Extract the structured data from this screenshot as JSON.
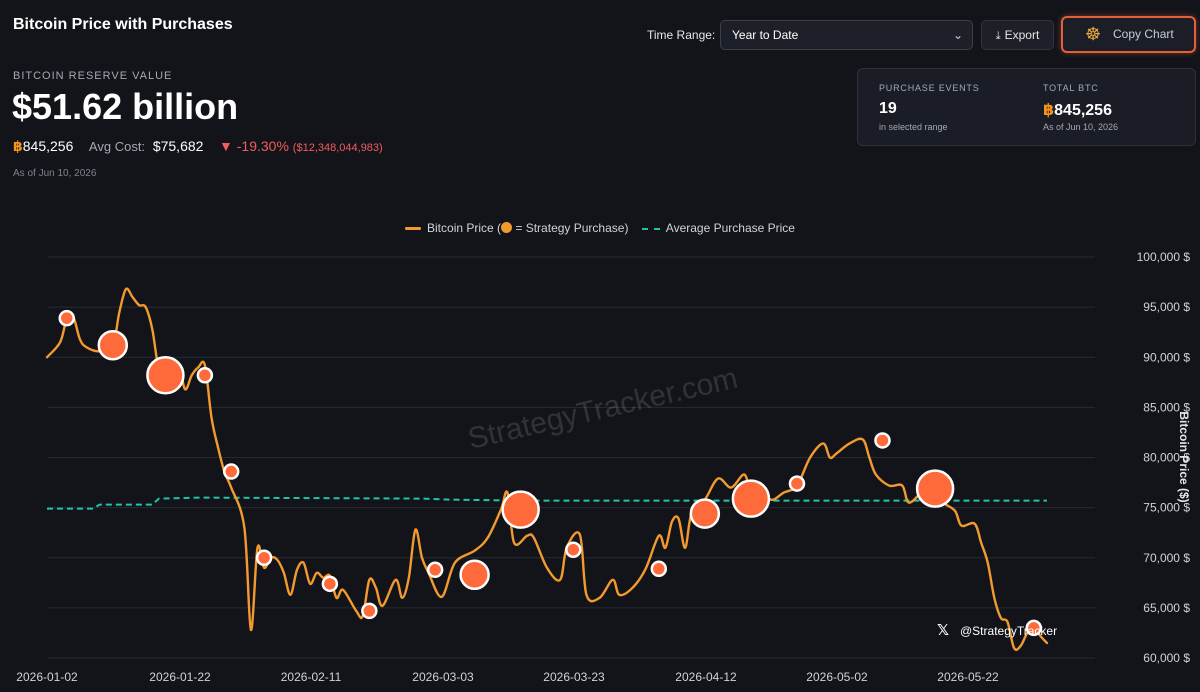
{
  "header": {
    "title": "Bitcoin Price with Purchases",
    "time_range_label": "Time Range:",
    "time_range_value": "Year to Date",
    "export_label": "Export",
    "copy_chart_label": "Copy Chart"
  },
  "reserve": {
    "label": "BITCOIN RESERVE VALUE",
    "value": "$51.62 billion",
    "btc_symbol": "฿",
    "btc_amount": "845,256",
    "avg_cost_label": "Avg Cost:",
    "avg_cost_value": "$75,682",
    "change_pct": "-19.30%",
    "change_usd": "($12,348,044,983)",
    "as_of": "As of Jun 10, 2026"
  },
  "summary": {
    "purchase_events_label": "PURCHASE EVENTS",
    "purchase_events_value": "19",
    "purchase_events_sub": "in selected range",
    "total_btc_label": "TOTAL BTC",
    "total_btc_value": "845,256",
    "total_btc_sub": "As of Jun 10, 2026"
  },
  "legend": {
    "price_label_pre": "Bitcoin Price (",
    "price_label_post": " = Strategy Purchase)",
    "avg_label": "Average Purchase Price"
  },
  "watermark": "StrategyTracker.com",
  "handle": "@StrategyTracker",
  "colors": {
    "price_line": "#f39a2f",
    "purchase_marker": "#ff6a3a",
    "avg_line": "#23c3a8",
    "background": "#12141a",
    "negative": "#f05d5e"
  },
  "chart_data": {
    "type": "line",
    "x_axis": "date",
    "x_ticks": [
      "2026-01-02",
      "2026-01-22",
      "2026-02-11",
      "2026-03-03",
      "2026-03-23",
      "2026-04-12",
      "2026-05-02",
      "2026-05-22"
    ],
    "ylabel": "Bitcoin Price ($)",
    "ylim": [
      60000,
      100000
    ],
    "y_ticks": [
      60000,
      65000,
      70000,
      75000,
      80000,
      85000,
      90000,
      95000,
      100000
    ],
    "y_tick_labels": [
      "60,000 $",
      "65,000 $",
      "70,000 $",
      "75,000 $",
      "80,000 $",
      "85,000 $",
      "90,000 $",
      "95,000 $",
      "100,000 $"
    ],
    "grid": true,
    "legend_position": "top-center",
    "series": [
      {
        "name": "Bitcoin Price",
        "points": [
          [
            "2026-01-02",
            90000
          ],
          [
            "2026-01-04",
            91500
          ],
          [
            "2026-01-05",
            93800
          ],
          [
            "2026-01-06",
            94000
          ],
          [
            "2026-01-07",
            91800
          ],
          [
            "2026-01-08",
            91000
          ],
          [
            "2026-01-10",
            90600
          ],
          [
            "2026-01-12",
            91200
          ],
          [
            "2026-01-13",
            94500
          ],
          [
            "2026-01-14",
            96800
          ],
          [
            "2026-01-15",
            96000
          ],
          [
            "2026-01-16",
            95200
          ],
          [
            "2026-01-17",
            95000
          ],
          [
            "2026-01-18",
            92800
          ],
          [
            "2026-01-19",
            88800
          ],
          [
            "2026-01-20",
            88800
          ],
          [
            "2026-01-22",
            89000
          ],
          [
            "2026-01-23",
            86800
          ],
          [
            "2026-01-24",
            88200
          ],
          [
            "2026-01-25",
            89000
          ],
          [
            "2026-01-26",
            89200
          ],
          [
            "2026-01-27",
            84000
          ],
          [
            "2026-01-28",
            81000
          ],
          [
            "2026-01-29",
            78500
          ],
          [
            "2026-01-30",
            77000
          ],
          [
            "2026-02-01",
            73000
          ],
          [
            "2026-02-02",
            62800
          ],
          [
            "2026-02-03",
            71000
          ],
          [
            "2026-02-04",
            69000
          ],
          [
            "2026-02-05",
            70000
          ],
          [
            "2026-02-06",
            69800
          ],
          [
            "2026-02-07",
            68500
          ],
          [
            "2026-02-08",
            66300
          ],
          [
            "2026-02-09",
            68800
          ],
          [
            "2026-02-10",
            69500
          ],
          [
            "2026-02-11",
            67400
          ],
          [
            "2026-02-12",
            68500
          ],
          [
            "2026-02-13",
            68000
          ],
          [
            "2026-02-14",
            68200
          ],
          [
            "2026-02-15",
            66000
          ],
          [
            "2026-02-16",
            66800
          ],
          [
            "2026-02-18",
            64700
          ],
          [
            "2026-02-19",
            64200
          ],
          [
            "2026-02-20",
            67800
          ],
          [
            "2026-02-21",
            67000
          ],
          [
            "2026-02-22",
            65200
          ],
          [
            "2026-02-24",
            67800
          ],
          [
            "2026-02-25",
            66000
          ],
          [
            "2026-02-26",
            68000
          ],
          [
            "2026-02-27",
            72800
          ],
          [
            "2026-02-28",
            70000
          ],
          [
            "2026-03-01",
            68500
          ],
          [
            "2026-03-03",
            66100
          ],
          [
            "2026-03-05",
            69500
          ],
          [
            "2026-03-08",
            70700
          ],
          [
            "2026-03-10",
            72000
          ],
          [
            "2026-03-12",
            74800
          ],
          [
            "2026-03-13",
            76500
          ],
          [
            "2026-03-14",
            71500
          ],
          [
            "2026-03-16",
            72200
          ],
          [
            "2026-03-17",
            72000
          ],
          [
            "2026-03-19",
            69000
          ],
          [
            "2026-03-21",
            67800
          ],
          [
            "2026-03-22",
            71000
          ],
          [
            "2026-03-24",
            72300
          ],
          [
            "2026-03-25",
            66300
          ],
          [
            "2026-03-27",
            66000
          ],
          [
            "2026-03-29",
            67800
          ],
          [
            "2026-03-30",
            66300
          ],
          [
            "2026-04-01",
            67000
          ],
          [
            "2026-04-03",
            68900
          ],
          [
            "2026-04-05",
            72200
          ],
          [
            "2026-04-06",
            71000
          ],
          [
            "2026-04-07",
            73600
          ],
          [
            "2026-04-08",
            73900
          ],
          [
            "2026-04-09",
            71000
          ],
          [
            "2026-04-10",
            74500
          ],
          [
            "2026-04-12",
            75800
          ],
          [
            "2026-04-14",
            77900
          ],
          [
            "2026-04-16",
            77000
          ],
          [
            "2026-04-18",
            78300
          ],
          [
            "2026-04-19",
            76400
          ],
          [
            "2026-04-20",
            77300
          ],
          [
            "2026-04-22",
            75800
          ],
          [
            "2026-04-24",
            76500
          ],
          [
            "2026-04-26",
            77200
          ],
          [
            "2026-04-28",
            80000
          ],
          [
            "2026-04-30",
            81400
          ],
          [
            "2026-05-01",
            80000
          ],
          [
            "2026-05-02",
            80400
          ],
          [
            "2026-05-04",
            81400
          ],
          [
            "2026-05-06",
            81800
          ],
          [
            "2026-05-07",
            80000
          ],
          [
            "2026-05-08",
            78300
          ],
          [
            "2026-05-10",
            77200
          ],
          [
            "2026-05-12",
            77200
          ],
          [
            "2026-05-13",
            75500
          ],
          [
            "2026-05-15",
            76600
          ],
          [
            "2026-05-16",
            77200
          ],
          [
            "2026-05-18",
            75600
          ],
          [
            "2026-05-20",
            74700
          ],
          [
            "2026-05-21",
            73200
          ],
          [
            "2026-05-23",
            73400
          ],
          [
            "2026-05-24",
            71500
          ],
          [
            "2026-05-25",
            69500
          ],
          [
            "2026-05-26",
            66000
          ],
          [
            "2026-05-27",
            64000
          ],
          [
            "2026-05-28",
            63600
          ],
          [
            "2026-05-29",
            61000
          ],
          [
            "2026-05-30",
            61200
          ],
          [
            "2026-05-31",
            62500
          ],
          [
            "2026-06-01",
            63200
          ],
          [
            "2026-06-02",
            62200
          ],
          [
            "2026-06-03",
            61500
          ]
        ]
      },
      {
        "name": "Average Purchase Price",
        "points": [
          [
            "2026-01-02",
            74900
          ],
          [
            "2026-01-09",
            74900
          ],
          [
            "2026-01-10",
            75300
          ],
          [
            "2026-01-18",
            75300
          ],
          [
            "2026-01-19",
            75900
          ],
          [
            "2026-01-25",
            76000
          ],
          [
            "2026-02-28",
            75900
          ],
          [
            "2026-03-04",
            75800
          ],
          [
            "2026-03-15",
            75700
          ],
          [
            "2026-06-03",
            75700
          ]
        ]
      }
    ],
    "purchases": [
      {
        "date": "2026-01-05",
        "price": 93900,
        "size": "small"
      },
      {
        "date": "2026-01-12",
        "price": 91200,
        "size": "large"
      },
      {
        "date": "2026-01-20",
        "price": 88200,
        "size": "xlarge"
      },
      {
        "date": "2026-01-26",
        "price": 88200,
        "size": "small"
      },
      {
        "date": "2026-01-30",
        "price": 78600,
        "size": "small"
      },
      {
        "date": "2026-02-04",
        "price": 70000,
        "size": "small"
      },
      {
        "date": "2026-02-14",
        "price": 67400,
        "size": "small"
      },
      {
        "date": "2026-02-20",
        "price": 64700,
        "size": "small"
      },
      {
        "date": "2026-03-02",
        "price": 68800,
        "size": "small"
      },
      {
        "date": "2026-03-08",
        "price": 68300,
        "size": "large"
      },
      {
        "date": "2026-03-15",
        "price": 74800,
        "size": "xlarge"
      },
      {
        "date": "2026-03-23",
        "price": 70800,
        "size": "small"
      },
      {
        "date": "2026-04-05",
        "price": 68900,
        "size": "small"
      },
      {
        "date": "2026-04-12",
        "price": 74400,
        "size": "large"
      },
      {
        "date": "2026-04-19",
        "price": 75900,
        "size": "xlarge"
      },
      {
        "date": "2026-04-26",
        "price": 77400,
        "size": "small"
      },
      {
        "date": "2026-05-09",
        "price": 81700,
        "size": "small"
      },
      {
        "date": "2026-05-17",
        "price": 76900,
        "size": "xlarge"
      },
      {
        "date": "2026-06-01",
        "price": 63000,
        "size": "small"
      }
    ]
  }
}
